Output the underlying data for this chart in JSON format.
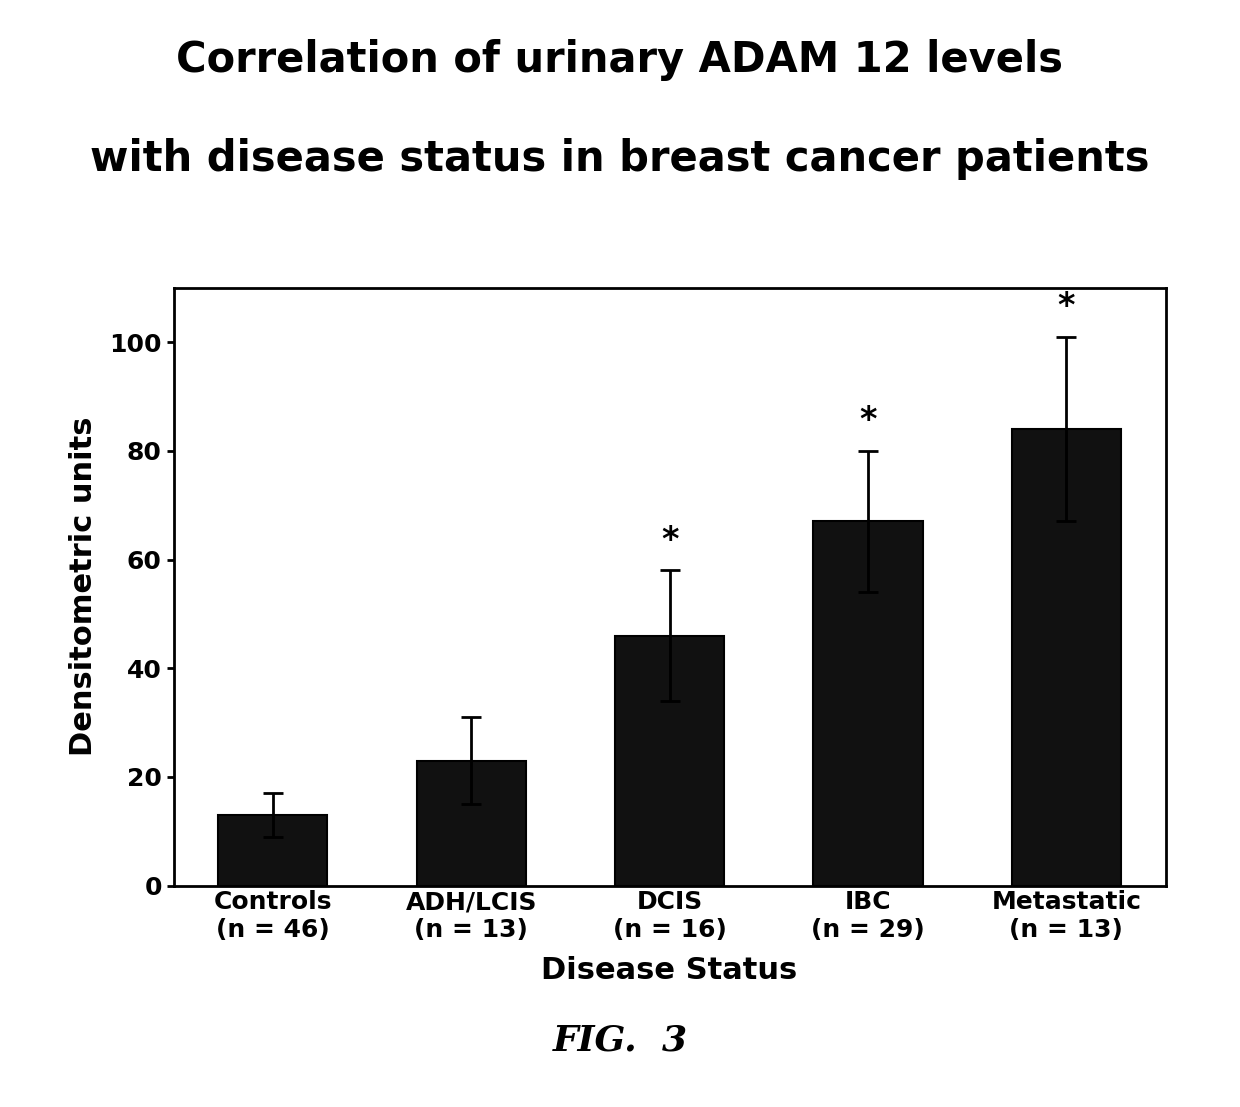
{
  "title_line1": "Correlation of urinary ADAM 12 levels",
  "title_line2": "with disease status in breast cancer patients",
  "title_fontsize": 30,
  "title_fontweight": "bold",
  "categories": [
    "Controls\n(n = 46)",
    "ADH/LCIS\n(n = 13)",
    "DCIS\n(n = 16)",
    "IBC\n(n = 29)",
    "Metastatic\n(n = 13)"
  ],
  "values": [
    13,
    23,
    46,
    67,
    84
  ],
  "errors": [
    4,
    8,
    12,
    13,
    17
  ],
  "bar_color": "#111111",
  "bar_width": 0.55,
  "ylabel": "Densitometric units",
  "xlabel": "Disease Status",
  "ylabel_fontsize": 22,
  "xlabel_fontsize": 22,
  "tick_fontsize": 18,
  "ylim": [
    0,
    110
  ],
  "yticks": [
    0,
    20,
    40,
    60,
    80,
    100
  ],
  "significance_markers": [
    false,
    false,
    true,
    true,
    true
  ],
  "star_fontsize": 24,
  "fig_caption": "FIG.  3",
  "fig_caption_fontsize": 26,
  "background_color": "#ffffff",
  "plot_background_color": "#ffffff"
}
